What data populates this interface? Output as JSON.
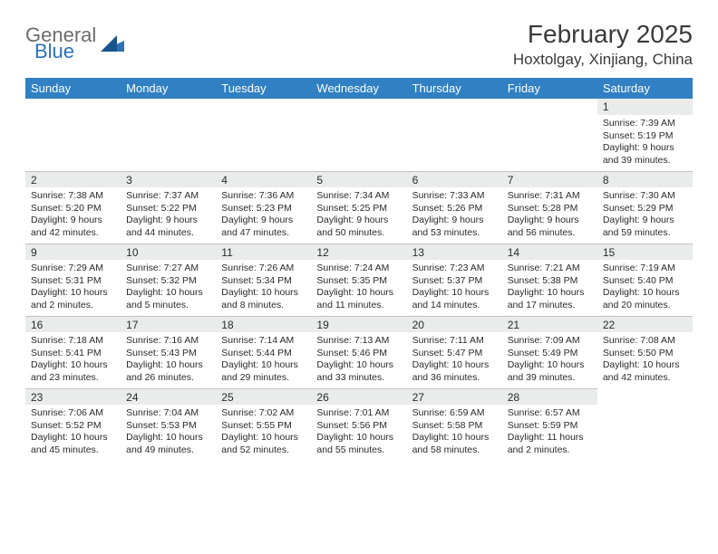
{
  "brand": {
    "word1": "General",
    "word2": "Blue",
    "word1_color": "#6b6b6b",
    "word2_color": "#2c72b8",
    "mark_color": "#2c72b8"
  },
  "title": "February 2025",
  "subtitle": "Hoxtolgay, Xinjiang, China",
  "colors": {
    "header_bg": "#3080c3",
    "header_text": "#ffffff",
    "daynum_bg": "#e9eceb",
    "daynum_border": "#bfc3c2",
    "text": "#2a2a2a",
    "background": "#ffffff"
  },
  "typography": {
    "title_fontsize": 28,
    "subtitle_fontsize": 17,
    "dayheader_fontsize": 13,
    "daynum_fontsize": 12,
    "body_fontsize": 10.5,
    "font_family": "Arial"
  },
  "day_headers": [
    "Sunday",
    "Monday",
    "Tuesday",
    "Wednesday",
    "Thursday",
    "Friday",
    "Saturday"
  ],
  "weeks": [
    [
      {
        "empty": true
      },
      {
        "empty": true
      },
      {
        "empty": true
      },
      {
        "empty": true
      },
      {
        "empty": true
      },
      {
        "empty": true
      },
      {
        "day": "1",
        "sunrise": "Sunrise: 7:39 AM",
        "sunset": "Sunset: 5:19 PM",
        "daylight": "Daylight: 9 hours and 39 minutes."
      }
    ],
    [
      {
        "day": "2",
        "sunrise": "Sunrise: 7:38 AM",
        "sunset": "Sunset: 5:20 PM",
        "daylight": "Daylight: 9 hours and 42 minutes."
      },
      {
        "day": "3",
        "sunrise": "Sunrise: 7:37 AM",
        "sunset": "Sunset: 5:22 PM",
        "daylight": "Daylight: 9 hours and 44 minutes."
      },
      {
        "day": "4",
        "sunrise": "Sunrise: 7:36 AM",
        "sunset": "Sunset: 5:23 PM",
        "daylight": "Daylight: 9 hours and 47 minutes."
      },
      {
        "day": "5",
        "sunrise": "Sunrise: 7:34 AM",
        "sunset": "Sunset: 5:25 PM",
        "daylight": "Daylight: 9 hours and 50 minutes."
      },
      {
        "day": "6",
        "sunrise": "Sunrise: 7:33 AM",
        "sunset": "Sunset: 5:26 PM",
        "daylight": "Daylight: 9 hours and 53 minutes."
      },
      {
        "day": "7",
        "sunrise": "Sunrise: 7:31 AM",
        "sunset": "Sunset: 5:28 PM",
        "daylight": "Daylight: 9 hours and 56 minutes."
      },
      {
        "day": "8",
        "sunrise": "Sunrise: 7:30 AM",
        "sunset": "Sunset: 5:29 PM",
        "daylight": "Daylight: 9 hours and 59 minutes."
      }
    ],
    [
      {
        "day": "9",
        "sunrise": "Sunrise: 7:29 AM",
        "sunset": "Sunset: 5:31 PM",
        "daylight": "Daylight: 10 hours and 2 minutes."
      },
      {
        "day": "10",
        "sunrise": "Sunrise: 7:27 AM",
        "sunset": "Sunset: 5:32 PM",
        "daylight": "Daylight: 10 hours and 5 minutes."
      },
      {
        "day": "11",
        "sunrise": "Sunrise: 7:26 AM",
        "sunset": "Sunset: 5:34 PM",
        "daylight": "Daylight: 10 hours and 8 minutes."
      },
      {
        "day": "12",
        "sunrise": "Sunrise: 7:24 AM",
        "sunset": "Sunset: 5:35 PM",
        "daylight": "Daylight: 10 hours and 11 minutes."
      },
      {
        "day": "13",
        "sunrise": "Sunrise: 7:23 AM",
        "sunset": "Sunset: 5:37 PM",
        "daylight": "Daylight: 10 hours and 14 minutes."
      },
      {
        "day": "14",
        "sunrise": "Sunrise: 7:21 AM",
        "sunset": "Sunset: 5:38 PM",
        "daylight": "Daylight: 10 hours and 17 minutes."
      },
      {
        "day": "15",
        "sunrise": "Sunrise: 7:19 AM",
        "sunset": "Sunset: 5:40 PM",
        "daylight": "Daylight: 10 hours and 20 minutes."
      }
    ],
    [
      {
        "day": "16",
        "sunrise": "Sunrise: 7:18 AM",
        "sunset": "Sunset: 5:41 PM",
        "daylight": "Daylight: 10 hours and 23 minutes."
      },
      {
        "day": "17",
        "sunrise": "Sunrise: 7:16 AM",
        "sunset": "Sunset: 5:43 PM",
        "daylight": "Daylight: 10 hours and 26 minutes."
      },
      {
        "day": "18",
        "sunrise": "Sunrise: 7:14 AM",
        "sunset": "Sunset: 5:44 PM",
        "daylight": "Daylight: 10 hours and 29 minutes."
      },
      {
        "day": "19",
        "sunrise": "Sunrise: 7:13 AM",
        "sunset": "Sunset: 5:46 PM",
        "daylight": "Daylight: 10 hours and 33 minutes."
      },
      {
        "day": "20",
        "sunrise": "Sunrise: 7:11 AM",
        "sunset": "Sunset: 5:47 PM",
        "daylight": "Daylight: 10 hours and 36 minutes."
      },
      {
        "day": "21",
        "sunrise": "Sunrise: 7:09 AM",
        "sunset": "Sunset: 5:49 PM",
        "daylight": "Daylight: 10 hours and 39 minutes."
      },
      {
        "day": "22",
        "sunrise": "Sunrise: 7:08 AM",
        "sunset": "Sunset: 5:50 PM",
        "daylight": "Daylight: 10 hours and 42 minutes."
      }
    ],
    [
      {
        "day": "23",
        "sunrise": "Sunrise: 7:06 AM",
        "sunset": "Sunset: 5:52 PM",
        "daylight": "Daylight: 10 hours and 45 minutes."
      },
      {
        "day": "24",
        "sunrise": "Sunrise: 7:04 AM",
        "sunset": "Sunset: 5:53 PM",
        "daylight": "Daylight: 10 hours and 49 minutes."
      },
      {
        "day": "25",
        "sunrise": "Sunrise: 7:02 AM",
        "sunset": "Sunset: 5:55 PM",
        "daylight": "Daylight: 10 hours and 52 minutes."
      },
      {
        "day": "26",
        "sunrise": "Sunrise: 7:01 AM",
        "sunset": "Sunset: 5:56 PM",
        "daylight": "Daylight: 10 hours and 55 minutes."
      },
      {
        "day": "27",
        "sunrise": "Sunrise: 6:59 AM",
        "sunset": "Sunset: 5:58 PM",
        "daylight": "Daylight: 10 hours and 58 minutes."
      },
      {
        "day": "28",
        "sunrise": "Sunrise: 6:57 AM",
        "sunset": "Sunset: 5:59 PM",
        "daylight": "Daylight: 11 hours and 2 minutes."
      },
      {
        "empty": true
      }
    ]
  ]
}
